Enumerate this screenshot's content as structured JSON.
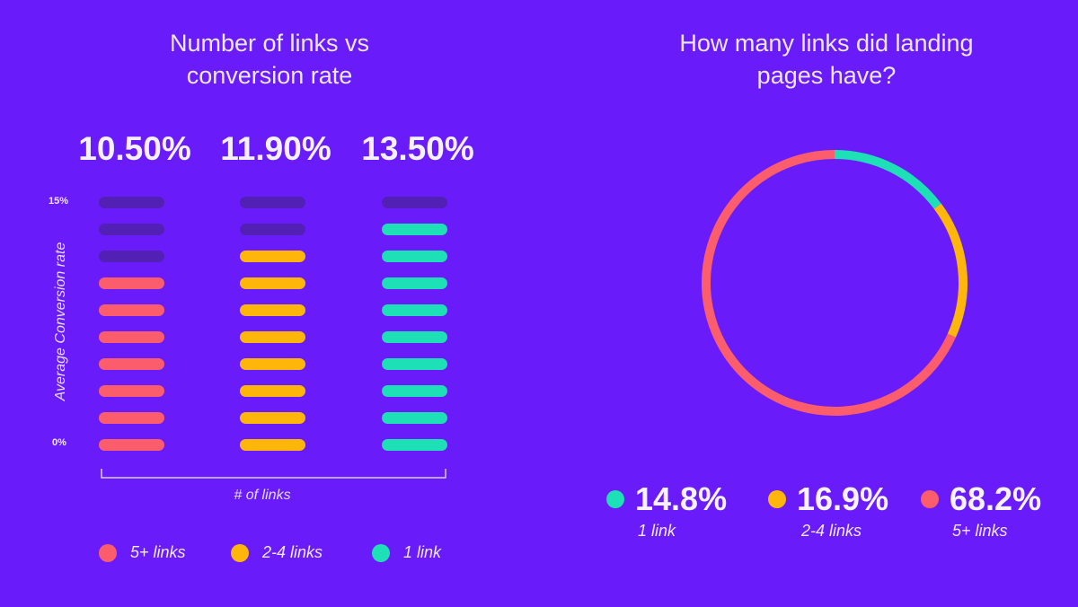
{
  "colors": {
    "background": "#6a1bfa",
    "five_plus": "#fb5d6d",
    "two_to_four": "#ffb60a",
    "one_link": "#1ee0b6",
    "empty_bar": "#5220b4"
  },
  "chart_data": [
    {
      "type": "bar",
      "title_lines": [
        "Number of links vs",
        "conversion rate"
      ],
      "categories": [
        "5+ links",
        "2-4 links",
        "1 link"
      ],
      "values_display": [
        "10.50%",
        "11.90%",
        "13.50%"
      ],
      "values": [
        10.5,
        11.9,
        13.5
      ],
      "filled_segments": [
        7,
        8,
        9
      ],
      "total_segments": 10,
      "ylabel": "Average Conversion rate",
      "xlabel": "# of links",
      "ylim": [
        0,
        15
      ],
      "yticks": [
        "15%",
        "0%"
      ],
      "legend": [
        "5+ links",
        "2-4 links",
        "1 link"
      ]
    },
    {
      "type": "pie",
      "title_lines": [
        "How many links did landing",
        "pages have?"
      ],
      "slices": [
        {
          "label": "1 link",
          "value": 14.8,
          "display": "14.8%"
        },
        {
          "label": "2-4 links",
          "value": 16.9,
          "display": "16.9%"
        },
        {
          "label": "5+ links",
          "value": 68.2,
          "display": "68.2%"
        }
      ]
    }
  ]
}
